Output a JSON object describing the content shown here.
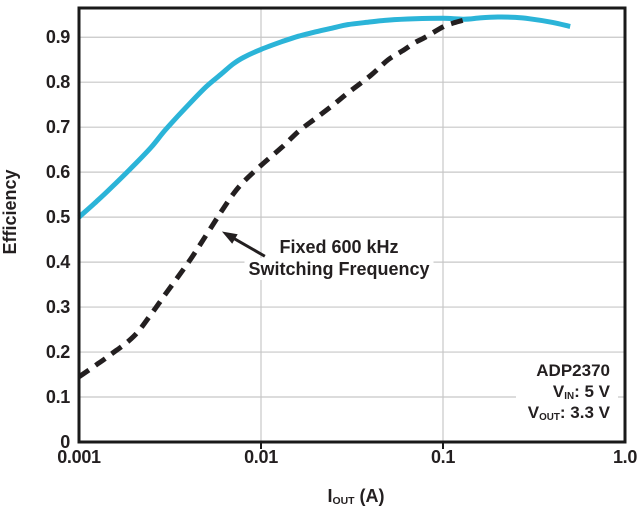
{
  "figure": {
    "ylabel": "Efficiency",
    "xlabel": {
      "base": "I",
      "sub": "OUT",
      "rest": " (A)"
    }
  },
  "annotation": {
    "line1": "Fixed 600 kHz",
    "line2": "Switching Frequency",
    "arrow": {
      "from": [
        0.0105,
        0.413
      ],
      "to": [
        0.0061,
        0.468
      ]
    }
  },
  "device_info": {
    "name": "ADP2370",
    "vin_base": "V",
    "vin_sub": "IN",
    "vin_rest": ": 5 V",
    "vout_base": "V",
    "vout_sub": "OUT",
    "vout_rest": ": 3.3 V"
  },
  "colors": {
    "accent_cyan": "#2bb4d8",
    "line_black": "#231f20",
    "grid": "#c7c7c7",
    "border": "#1a1a1a"
  },
  "chart_data": {
    "type": "line",
    "title": "",
    "xlabel": "I_OUT (A)",
    "ylabel": "Efficiency",
    "x_scale": "log",
    "xlim": [
      0.001,
      1.0
    ],
    "ylim": [
      0,
      0.965
    ],
    "xticks": [
      0.001,
      0.01,
      0.1,
      1.0
    ],
    "xtick_labels": [
      "0.001",
      "0.01",
      "0.1",
      "1.0"
    ],
    "yticks": [
      0,
      0.1,
      0.2,
      0.3,
      0.4,
      0.5,
      0.6,
      0.7,
      0.8,
      0.9
    ],
    "ytick_labels": [
      "0",
      "0.1",
      "0.2",
      "0.3",
      "0.4",
      "0.5",
      "0.6",
      "0.7",
      "0.8",
      "0.9"
    ],
    "grid": true,
    "legend": "none (dashed curve labeled by in-plot annotation)",
    "series": [
      {
        "name": "unlabeled-solid-cyan",
        "style": "solid",
        "color_key": "accent_cyan",
        "points": [
          [
            0.001,
            0.5
          ],
          [
            0.00125,
            0.535
          ],
          [
            0.0015,
            0.565
          ],
          [
            0.002,
            0.615
          ],
          [
            0.0025,
            0.656
          ],
          [
            0.003,
            0.695
          ],
          [
            0.004,
            0.75
          ],
          [
            0.005,
            0.79
          ],
          [
            0.006,
            0.817
          ],
          [
            0.007,
            0.84
          ],
          [
            0.008,
            0.855
          ],
          [
            0.01,
            0.873
          ],
          [
            0.013,
            0.89
          ],
          [
            0.016,
            0.902
          ],
          [
            0.02,
            0.912
          ],
          [
            0.025,
            0.921
          ],
          [
            0.03,
            0.928
          ],
          [
            0.04,
            0.934
          ],
          [
            0.05,
            0.938
          ],
          [
            0.07,
            0.941
          ],
          [
            0.1,
            0.942
          ],
          [
            0.13,
            0.94
          ],
          [
            0.16,
            0.943
          ],
          [
            0.2,
            0.945
          ],
          [
            0.25,
            0.944
          ],
          [
            0.3,
            0.941
          ],
          [
            0.4,
            0.933
          ],
          [
            0.5,
            0.924
          ]
        ]
      },
      {
        "name": "Fixed 600 kHz Switching Frequency",
        "style": "dashed",
        "color_key": "line_black",
        "points": [
          [
            0.001,
            0.145
          ],
          [
            0.00125,
            0.172
          ],
          [
            0.0015,
            0.195
          ],
          [
            0.002,
            0.235
          ],
          [
            0.0025,
            0.285
          ],
          [
            0.003,
            0.33
          ],
          [
            0.004,
            0.4
          ],
          [
            0.005,
            0.46
          ],
          [
            0.006,
            0.51
          ],
          [
            0.007,
            0.55
          ],
          [
            0.008,
            0.578
          ],
          [
            0.01,
            0.615
          ],
          [
            0.013,
            0.655
          ],
          [
            0.016,
            0.69
          ],
          [
            0.02,
            0.72
          ],
          [
            0.025,
            0.75
          ],
          [
            0.03,
            0.776
          ],
          [
            0.04,
            0.815
          ],
          [
            0.05,
            0.85
          ],
          [
            0.06,
            0.87
          ],
          [
            0.07,
            0.888
          ],
          [
            0.08,
            0.9
          ],
          [
            0.1,
            0.923
          ],
          [
            0.115,
            0.932
          ],
          [
            0.13,
            0.938
          ]
        ]
      }
    ]
  }
}
